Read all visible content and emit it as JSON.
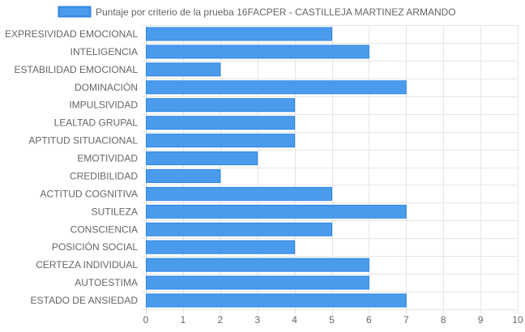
{
  "chart_data": {
    "type": "bar",
    "orientation": "horizontal",
    "categories": [
      "EXPRESIVIDAD EMOCIONAL",
      "INTELIGENCIA",
      "ESTABILIDAD EMOCIONAL",
      "DOMINACIÓN",
      "IMPULSIVIDAD",
      "LEALTAD GRUPAL",
      "APTITUD SITUACIONAL",
      "EMOTIVIDAD",
      "CREDIBILIDAD",
      "ACTITUD COGNITIVA",
      "SUTILEZA",
      "CONSCIENCIA",
      "POSICIÓN SOCIAL",
      "CERTEZA INDIVIDUAL",
      "AUTOESTIMA",
      "ESTADO DE ANSIEDAD"
    ],
    "series": [
      {
        "name": "Puntaje por criterio de la prueba 16FACPER - CASTILLEJA MARTINEZ ARMANDO",
        "values": [
          5,
          6,
          2,
          7,
          4,
          4,
          4,
          3,
          2,
          5,
          7,
          5,
          4,
          6,
          6,
          7
        ],
        "color": "#4a9bec",
        "border_color": "#2e86e6"
      }
    ],
    "xlim": [
      0,
      10
    ],
    "x_ticks": [
      "0",
      "1",
      "2",
      "3",
      "4",
      "5",
      "6",
      "7",
      "8",
      "9",
      "10"
    ],
    "grid": true,
    "legend_position": "top"
  }
}
